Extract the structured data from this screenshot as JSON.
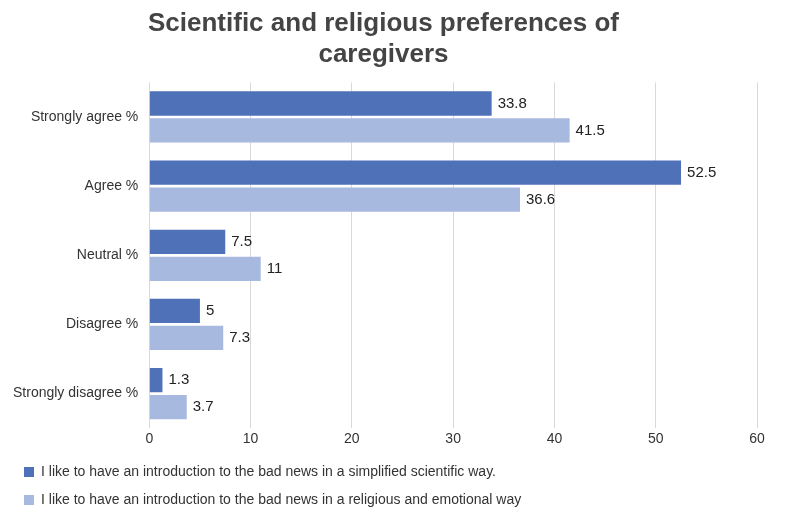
{
  "chart_data": {
    "type": "bar",
    "orientation": "horizontal",
    "title": "Scientific and religious preferences of caregivers",
    "categories": [
      "Strongly agree %",
      "Agree %",
      "Neutral %",
      "Disagree %",
      "Strongly disagree %"
    ],
    "series": [
      {
        "name": "I like to have an introduction to the bad news in a simplified scientific way.",
        "color": "#4f71b8",
        "values": [
          33.8,
          52.5,
          7.5,
          5,
          1.3
        ]
      },
      {
        "name": "I like to have an introduction to the bad news in a religious and emotional way",
        "color": "#a8b9e0",
        "values": [
          41.5,
          36.6,
          11,
          7.3,
          3.7
        ]
      }
    ],
    "xlim": [
      0,
      60
    ],
    "xticks": [
      0,
      10,
      20,
      30,
      40,
      50,
      60
    ],
    "grid": true,
    "legend": "bottom",
    "data_labels": true
  }
}
